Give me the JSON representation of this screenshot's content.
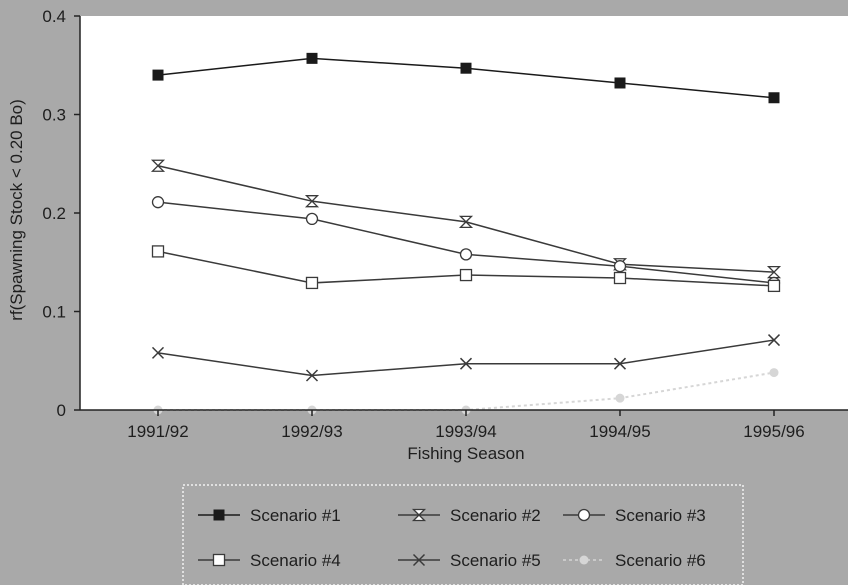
{
  "chart_data": {
    "type": "line",
    "title": "",
    "xlabel": "Fishing Season",
    "ylabel": "rf(Spawning Stock < 0.20 Bo)",
    "categories": [
      "1991/92",
      "1992/93",
      "1993/94",
      "1994/95",
      "1995/96"
    ],
    "ylim": [
      0,
      0.4
    ],
    "yticks": [
      0,
      0.1,
      0.2,
      0.3,
      0.4
    ],
    "ytick_labels": [
      "0",
      "0.1",
      "0.2",
      "0.3",
      "0.4"
    ],
    "grid": false,
    "legend_position": "bottom",
    "series": [
      {
        "name": "Scenario #1",
        "values": [
          0.34,
          0.357,
          0.347,
          0.332,
          0.317
        ],
        "marker": "filled-square",
        "color": "#1a1a1a"
      },
      {
        "name": "Scenario #2",
        "values": [
          0.248,
          0.212,
          0.191,
          0.148,
          0.14
        ],
        "marker": "hourglass",
        "color": "#3a3a3a"
      },
      {
        "name": "Scenario #3",
        "values": [
          0.211,
          0.194,
          0.158,
          0.146,
          0.129
        ],
        "marker": "open-circle",
        "color": "#3a3a3a"
      },
      {
        "name": "Scenario #4",
        "values": [
          0.161,
          0.129,
          0.137,
          0.134,
          0.126
        ],
        "marker": "open-square",
        "color": "#3a3a3a"
      },
      {
        "name": "Scenario #5",
        "values": [
          0.058,
          0.035,
          0.047,
          0.047,
          0.071
        ],
        "marker": "cross",
        "color": "#3a3a3a"
      },
      {
        "name": "Scenario #6",
        "values": [
          0.0,
          0.0,
          0.0,
          0.012,
          0.038
        ],
        "marker": "filled-circle",
        "color": "#d6d6d6"
      }
    ]
  }
}
